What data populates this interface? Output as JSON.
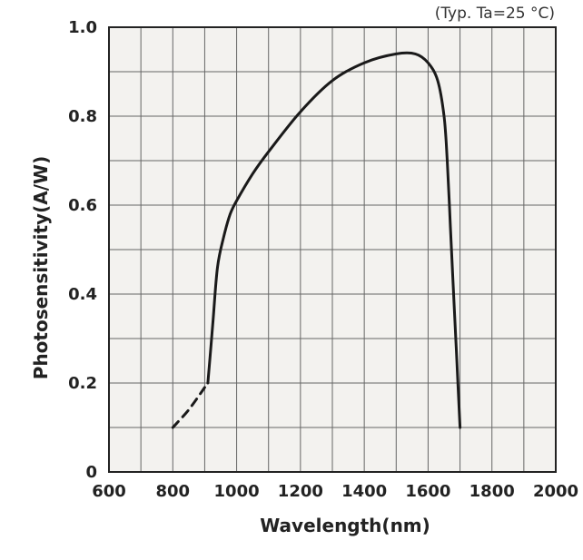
{
  "chart_data": {
    "type": "line",
    "title": "",
    "note": "(Typ. Ta=25 °C)",
    "xlabel": "Wavelength(nm)",
    "ylabel": "Photosensitivity(A/W)",
    "xlim": [
      600,
      2000
    ],
    "ylim": [
      0,
      1.0
    ],
    "x_ticks": [
      600,
      800,
      1000,
      1200,
      1400,
      1600,
      1800,
      2000
    ],
    "y_ticks": [
      0,
      0.2,
      0.4,
      0.6,
      0.8,
      1.0
    ],
    "y_tick_labels": [
      "0",
      "0.2",
      "0.4",
      "0.6",
      "0.8",
      "1.0"
    ],
    "grid": {
      "x_step": 100,
      "y_step": 0.1
    },
    "series": [
      {
        "style": "dashed",
        "x": [
          800,
          850,
          900
        ],
        "y": [
          0.1,
          0.14,
          0.19
        ]
      },
      {
        "style": "solid",
        "x": [
          910,
          925,
          940,
          960,
          980,
          1000,
          1050,
          1100,
          1200,
          1300,
          1400,
          1500,
          1560,
          1600,
          1630,
          1650,
          1660,
          1670,
          1680,
          1690,
          1700
        ],
        "y": [
          0.2,
          0.33,
          0.46,
          0.53,
          0.58,
          0.61,
          0.67,
          0.72,
          0.81,
          0.88,
          0.92,
          0.94,
          0.94,
          0.92,
          0.88,
          0.8,
          0.7,
          0.55,
          0.4,
          0.25,
          0.1
        ]
      }
    ]
  }
}
